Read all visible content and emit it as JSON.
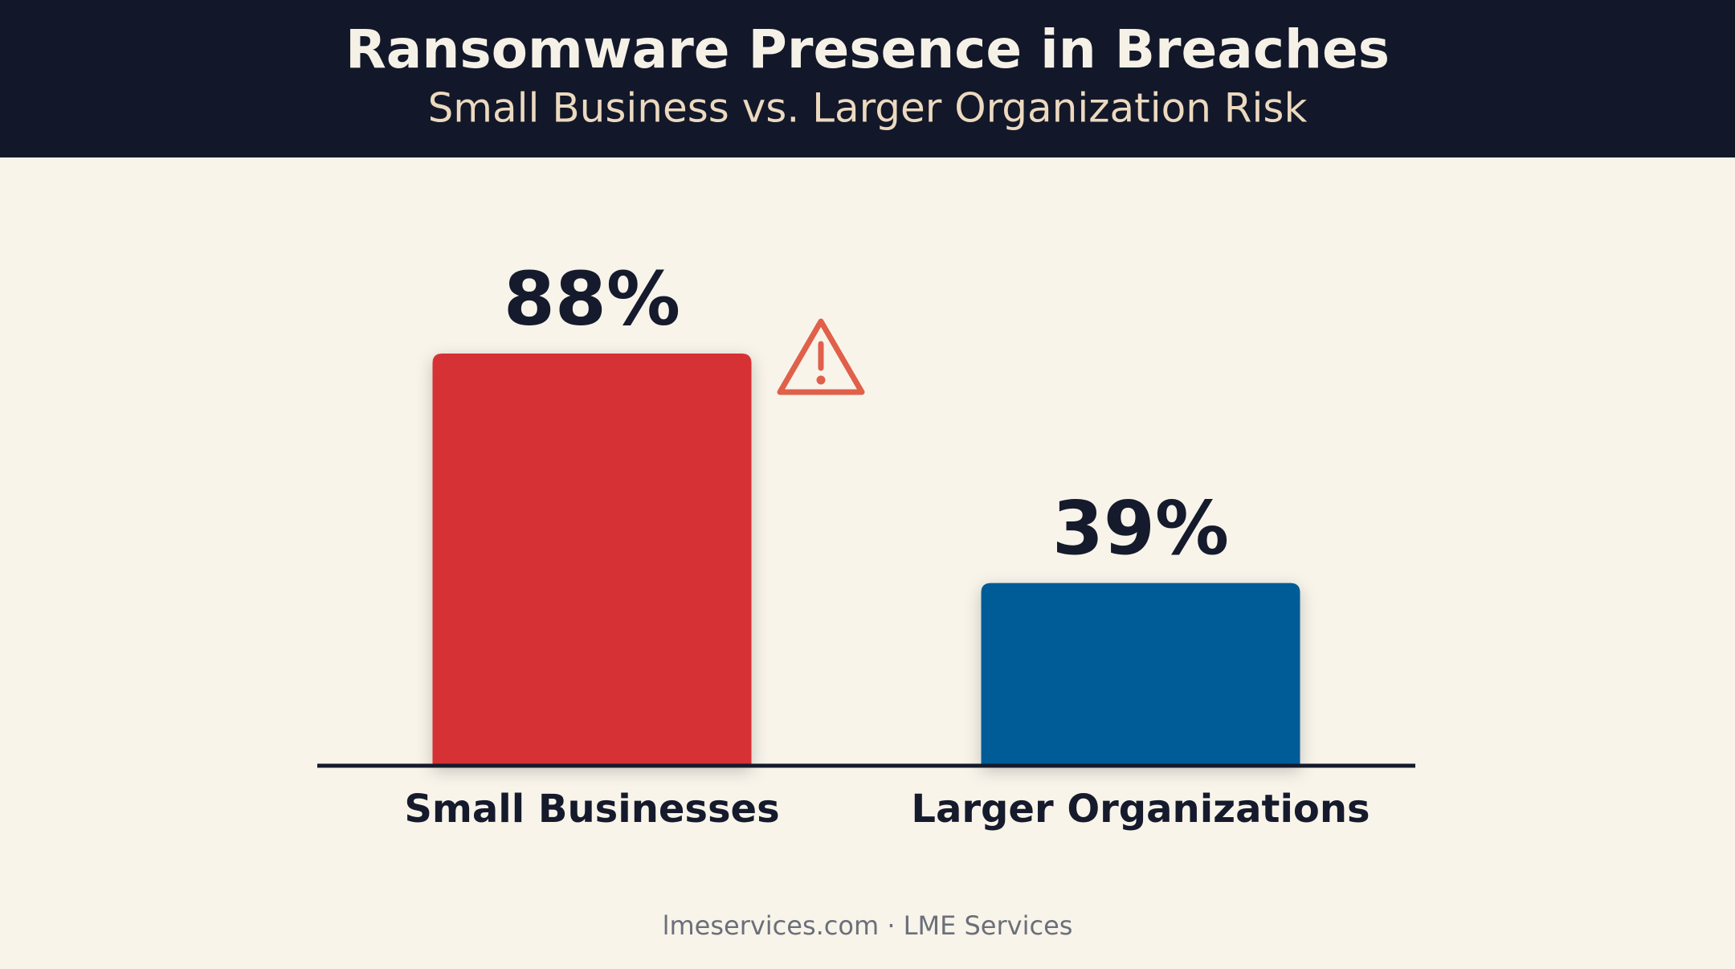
{
  "chart_data": {
    "type": "bar",
    "title": "Ransomware Presence in Breaches",
    "subtitle": "Small Business vs. Larger Organization Risk",
    "categories": [
      "Small Businesses",
      "Larger Organizations"
    ],
    "series": [
      {
        "name": "Ransomware presence",
        "values": [
          88,
          39
        ],
        "value_labels": [
          "88%",
          "39%"
        ]
      }
    ],
    "colors": [
      "#d63336",
      "#035c97"
    ],
    "ylim": [
      0,
      100
    ],
    "footer": "lmeservices.com · LME Services"
  }
}
